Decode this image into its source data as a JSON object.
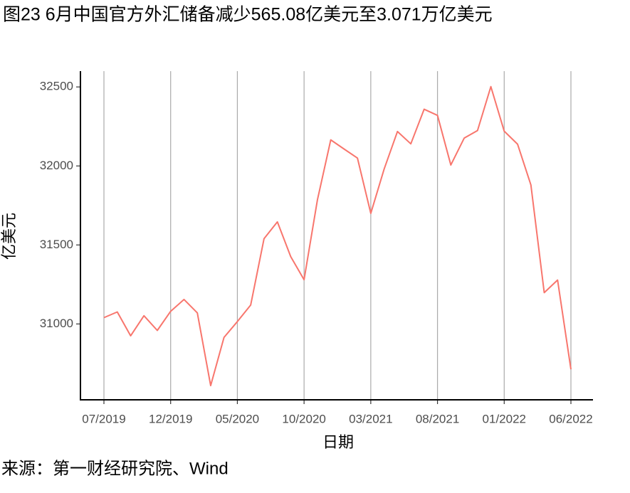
{
  "chart_data": {
    "type": "line",
    "title": "图23 6月中国官方外汇储备减少565.08亿美元至3.071万亿美元",
    "x_label": "日期",
    "y_label": "亿美元",
    "source": "来源：第一财经研究院、Wind",
    "categories": [
      "07/2019",
      null,
      null,
      null,
      null,
      "12/2019",
      null,
      null,
      null,
      null,
      "05/2020",
      null,
      null,
      null,
      null,
      "10/2020",
      null,
      null,
      null,
      null,
      "03/2021",
      null,
      null,
      null,
      null,
      "08/2021",
      null,
      null,
      null,
      null,
      "01/2022",
      null,
      null,
      null,
      null,
      "06/2022"
    ],
    "series": [
      {
        "name": "外汇储备",
        "color": "#f8766d",
        "values": [
          31040,
          31076,
          30925,
          31052,
          30959,
          31080,
          31155,
          31070,
          30610,
          30915,
          31015,
          31120,
          31540,
          31646,
          31426,
          31280,
          31785,
          32165,
          32107,
          32050,
          31700,
          31980,
          32218,
          32140,
          32359,
          32320,
          32006,
          32176,
          32224,
          32502,
          32220,
          32138,
          31880,
          31198,
          31278,
          30713
        ]
      }
    ],
    "ylim": [
      30520,
      32600
    ],
    "yticks": [
      31000,
      31500,
      32000,
      32500
    ],
    "grid": "x"
  }
}
